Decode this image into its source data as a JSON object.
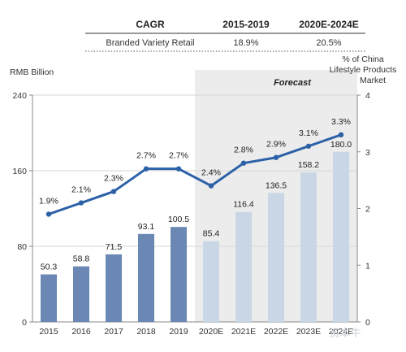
{
  "table": {
    "header": {
      "col1": "CAGR",
      "col2": "2015-2019",
      "col3": "2020E-2024E"
    },
    "row": {
      "label": "Branded Variety Retail",
      "v1": "18.9%",
      "v2": "20.5%"
    }
  },
  "watermark": "资本牛",
  "chart_data": {
    "type": "bar",
    "forecast_label": "Forecast",
    "left_axis_label": "RMB Billion",
    "right_axis_label_lines": [
      "% of China",
      "Lifestyle Products",
      "Market"
    ],
    "categories": [
      "2015",
      "2016",
      "2017",
      "2018",
      "2019",
      "2020E",
      "2021E",
      "2022E",
      "2023E",
      "2024E"
    ],
    "series": [
      {
        "kind": "bar",
        "values": [
          50.3,
          58.8,
          71.5,
          93.1,
          100.5,
          85.4,
          116.4,
          136.5,
          158.2,
          180.0
        ],
        "labels": [
          "50.3",
          "58.8",
          "71.5",
          "93.1",
          "100.5",
          "85.4",
          "116.4",
          "136.5",
          "158.2",
          "180.0"
        ]
      },
      {
        "kind": "line",
        "values": [
          1.9,
          2.1,
          2.3,
          2.7,
          2.7,
          2.4,
          2.8,
          2.9,
          3.1,
          3.3
        ],
        "labels": [
          "1.9%",
          "2.1%",
          "2.3%",
          "2.7%",
          "2.7%",
          "2.4%",
          "2.8%",
          "2.9%",
          "3.1%",
          "3.3%"
        ]
      }
    ],
    "left_ylim": [
      0,
      240
    ],
    "left_ticks": [
      "0",
      "80",
      "160",
      "240"
    ],
    "right_ylim": [
      0,
      4
    ],
    "right_ticks": [
      "0",
      "1",
      "2",
      "3",
      "4"
    ],
    "forecast_start_index": 5,
    "colors": {
      "bar_actual": "#6a88b3",
      "bar_forecast": "#c9d6e6",
      "line": "#2c61a8",
      "forecast_shade": "#ececec"
    }
  }
}
